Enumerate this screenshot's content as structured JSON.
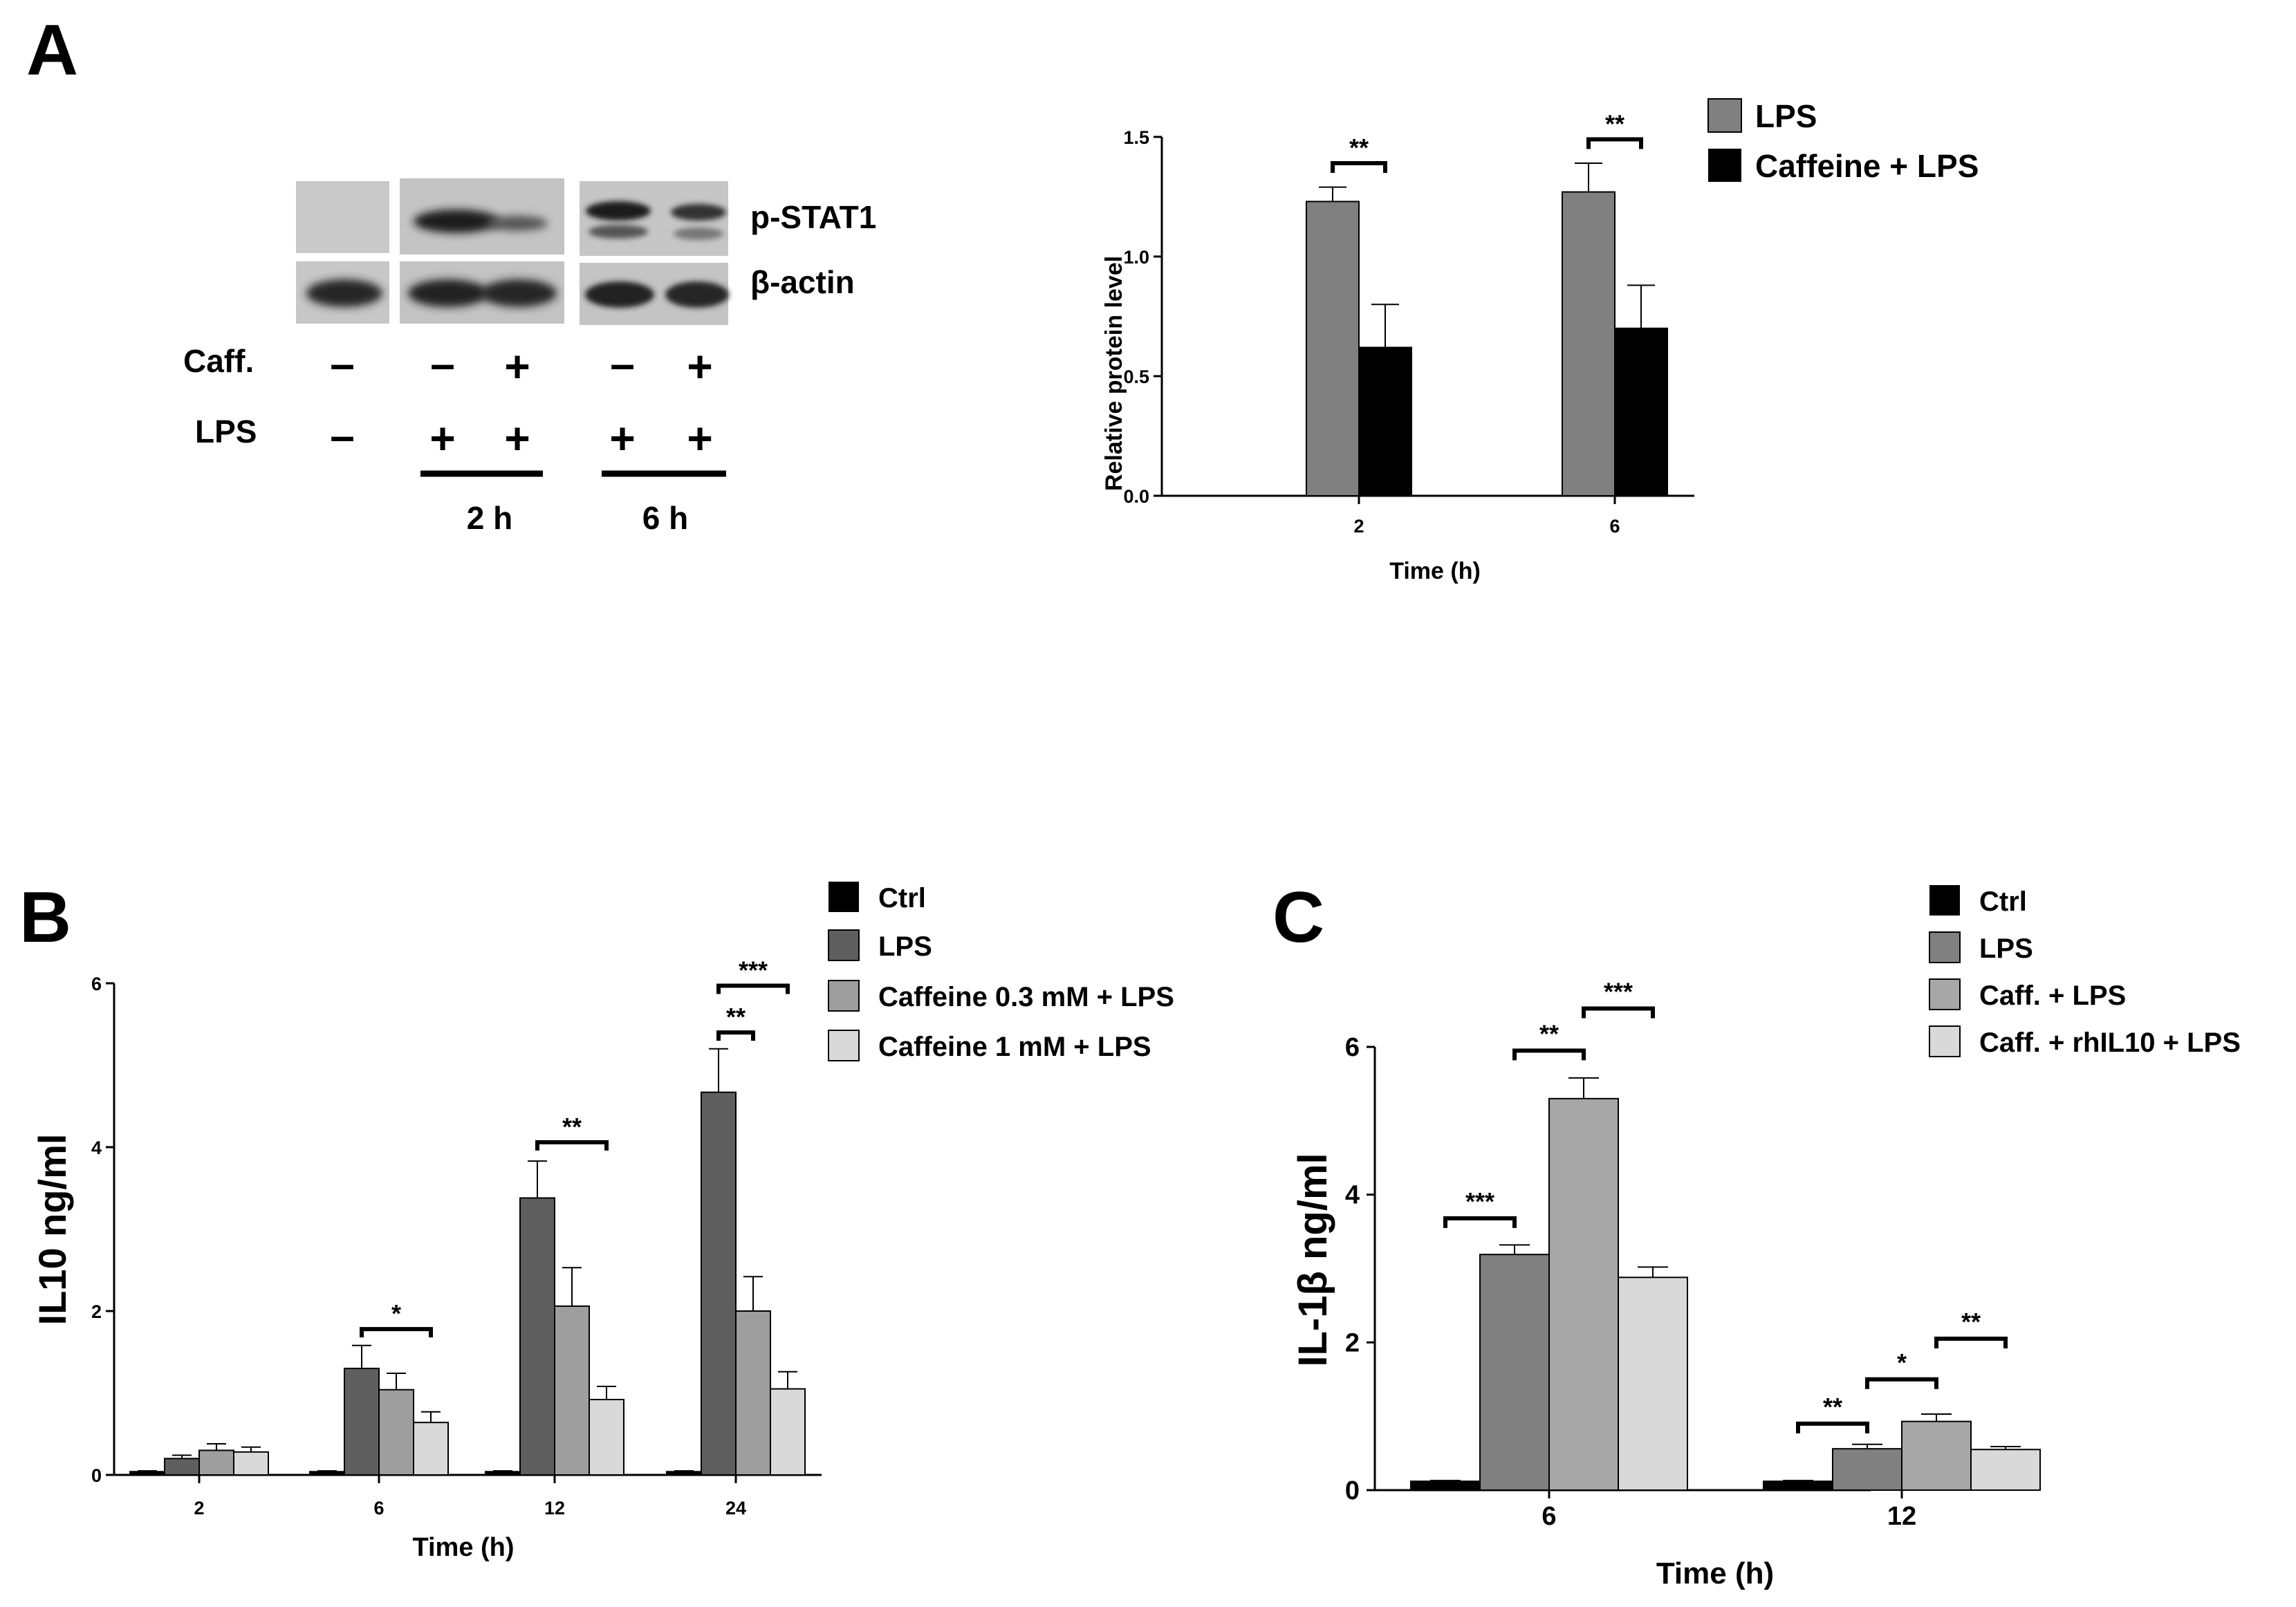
{
  "panels": {
    "a": "A",
    "b": "B",
    "c": "C"
  },
  "western_blot": {
    "bands": [
      "p-STAT1",
      "β-actin"
    ],
    "rows": [
      {
        "label": "Caff.",
        "signs": [
          "–",
          "–",
          "+",
          "–",
          "+"
        ]
      },
      {
        "label": "LPS",
        "signs": [
          "–",
          "+",
          "+",
          "+",
          "+"
        ]
      }
    ],
    "time_groups": [
      "2 h",
      "6 h"
    ]
  },
  "chart_data": [
    {
      "id": "chartA",
      "type": "bar",
      "xlabel": "Time (h)",
      "ylabel": "Relative protein level",
      "ylim": [
        0,
        1.5
      ],
      "yticks": [
        "0.0",
        "0.5",
        "1.0",
        "1.5"
      ],
      "categories": [
        "2",
        "6"
      ],
      "series": [
        {
          "name": "LPS",
          "color": "#808080",
          "values": [
            1.23,
            1.27
          ],
          "errors": [
            0.06,
            0.12
          ]
        },
        {
          "name": "Caffeine + LPS",
          "color": "#000000",
          "values": [
            0.62,
            0.7
          ],
          "errors": [
            0.18,
            0.18
          ]
        }
      ],
      "significance": [
        {
          "label": "**",
          "category": 0,
          "from": 0,
          "to": 1,
          "y": 1.39
        },
        {
          "label": "**",
          "category": 1,
          "from": 0,
          "to": 1,
          "y": 1.49
        }
      ]
    },
    {
      "id": "chartB",
      "type": "bar",
      "xlabel": "Time (h)",
      "ylabel": "IL10 ng/ml",
      "ylim": [
        0,
        6
      ],
      "yticks": [
        "0",
        "2",
        "4",
        "6"
      ],
      "categories": [
        "2",
        "6",
        "12",
        "24"
      ],
      "series": [
        {
          "name": "Ctrl",
          "color": "#000000",
          "values": [
            0.04,
            0.04,
            0.04,
            0.04
          ],
          "errors": [
            0.01,
            0.01,
            0.01,
            0.01
          ]
        },
        {
          "name": "LPS",
          "color": "#5f5f5f",
          "values": [
            0.2,
            1.3,
            3.38,
            4.67
          ],
          "errors": [
            0.04,
            0.28,
            0.45,
            0.53
          ]
        },
        {
          "name": "Caffeine 0.3 mM + LPS",
          "color": "#9e9e9e",
          "values": [
            0.3,
            1.04,
            2.06,
            2.0
          ],
          "errors": [
            0.08,
            0.2,
            0.47,
            0.42
          ]
        },
        {
          "name": "Caffeine 1 mM + LPS",
          "color": "#d9d9d9",
          "values": [
            0.28,
            0.64,
            0.92,
            1.05
          ],
          "errors": [
            0.06,
            0.13,
            0.16,
            0.21
          ]
        }
      ],
      "significance": [
        {
          "label": "*",
          "category": 1,
          "from": 1,
          "to": 3,
          "y": 1.78
        },
        {
          "label": "**",
          "category": 2,
          "from": 1,
          "to": 3,
          "y": 4.06
        },
        {
          "label": "**",
          "category": 3,
          "from": 1,
          "to": 2,
          "y": 5.4
        },
        {
          "label": "***",
          "category": 3,
          "from": 1,
          "to": 3,
          "y": 5.97
        }
      ]
    },
    {
      "id": "chartC",
      "type": "bar",
      "xlabel": "Time (h)",
      "ylabel": "IL-1β ng/ml",
      "ylim": [
        0,
        6
      ],
      "yticks": [
        "0",
        "2",
        "4",
        "6"
      ],
      "categories": [
        "6",
        "12"
      ],
      "series": [
        {
          "name": "Ctrl",
          "color": "#000000",
          "values": [
            0.12,
            0.12
          ],
          "errors": [
            0.01,
            0.01
          ]
        },
        {
          "name": "LPS",
          "color": "#808080",
          "values": [
            3.19,
            0.56
          ],
          "errors": [
            0.13,
            0.06
          ]
        },
        {
          "name": "Caff. + LPS",
          "color": "#a7a7a7",
          "values": [
            5.3,
            0.93
          ],
          "errors": [
            0.28,
            0.1
          ]
        },
        {
          "name": "Caff. + rhIL10 + LPS",
          "color": "#d9d9d9",
          "values": [
            2.88,
            0.55
          ],
          "errors": [
            0.14,
            0.04
          ]
        }
      ],
      "significance": [
        {
          "label": "***",
          "category": 0,
          "from": 0,
          "to": 1,
          "y": 3.68
        },
        {
          "label": "**",
          "category": 0,
          "from": 1,
          "to": 2,
          "y": 5.95
        },
        {
          "label": "***",
          "category": 0,
          "from": 2,
          "to": 3,
          "y": 6.52
        },
        {
          "label": "**",
          "category": 1,
          "from": 0,
          "to": 1,
          "y": 0.9
        },
        {
          "label": "*",
          "category": 1,
          "from": 1,
          "to": 2,
          "y": 1.5
        },
        {
          "label": "**",
          "category": 1,
          "from": 2,
          "to": 3,
          "y": 2.05
        }
      ]
    }
  ]
}
